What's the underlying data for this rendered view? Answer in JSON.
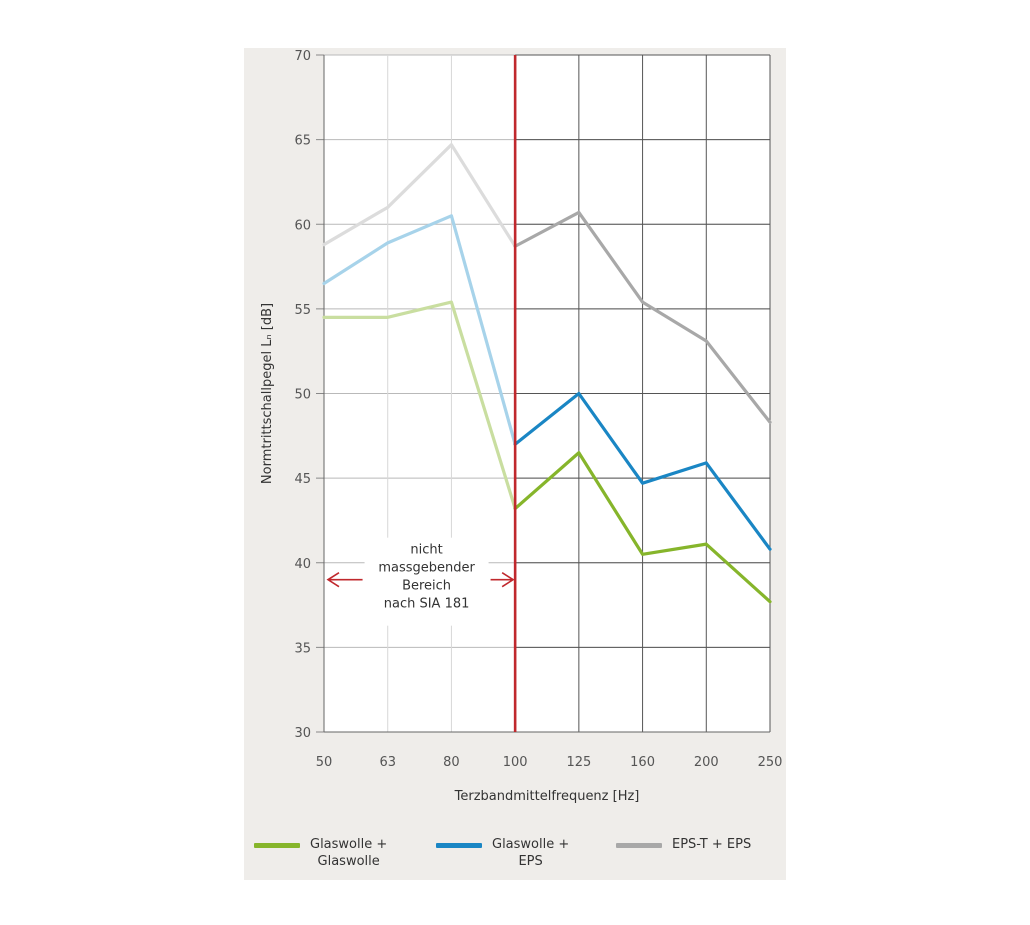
{
  "chart_data": {
    "type": "line",
    "xlabel": "Terzbandmittelfrequenz  [Hz]",
    "ylabel": "Normtrittschallpegel  Lₙ [dB]",
    "ylim": [
      30,
      70
    ],
    "yticks": [
      30,
      35,
      40,
      45,
      50,
      55,
      60,
      65,
      70
    ],
    "categories": [
      "50",
      "63",
      "80",
      "100",
      "125",
      "160",
      "200",
      "250"
    ],
    "grid": true,
    "legend_position": "bottom",
    "series": [
      {
        "name": "Glaswolle + Glaswolle",
        "legend_lines": [
          "Glaswolle +",
          "Glaswolle"
        ],
        "color": "#86b52b",
        "faded_color": "#c9dea0",
        "values": [
          54.5,
          54.5,
          55.4,
          43.2,
          46.5,
          40.5,
          41.1,
          37.7
        ]
      },
      {
        "name": "Glaswolle + EPS",
        "legend_lines": [
          "Glaswolle +",
          "EPS"
        ],
        "color": "#1a86c4",
        "faded_color": "#a7d3ea",
        "values": [
          56.5,
          58.9,
          60.5,
          47.0,
          50.0,
          44.7,
          45.9,
          40.8
        ]
      },
      {
        "name": "EPS-T + EPS",
        "legend_lines": [
          "EPS-T + EPS"
        ],
        "color": "#a8a8a8",
        "faded_color": "#dcdcdc",
        "values": [
          58.8,
          61.0,
          64.7,
          58.7,
          60.7,
          55.4,
          53.1,
          48.3
        ]
      }
    ],
    "threshold": {
      "category": "100",
      "color": "#c0282d"
    },
    "annotation": {
      "lines": [
        "nicht",
        "massgebender",
        "Bereich",
        "nach SIA 181"
      ],
      "arrow_from": "50",
      "arrow_to": "100",
      "arrow_y": 39
    }
  }
}
